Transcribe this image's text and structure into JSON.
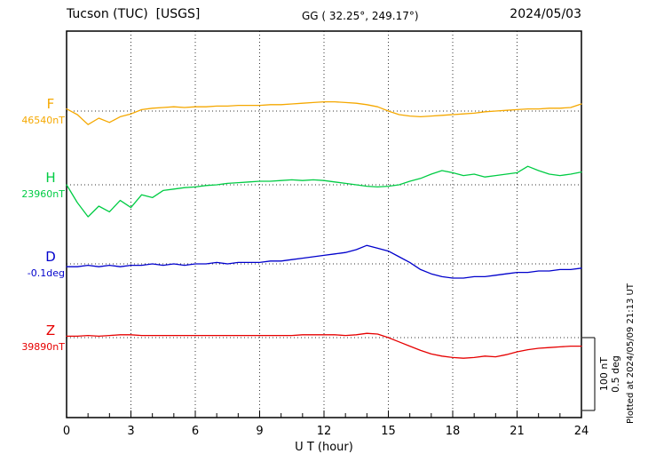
{
  "header": {
    "station": "Tucson (TUC)  [USGS]",
    "gg": "GG ( 32.25°, 249.17°)",
    "date": "2024/05/03"
  },
  "footer": {
    "xlabel": "U T (hour)"
  },
  "side": {
    "plotted": "Plotted at 2024/05/09 21:13 UT",
    "scale_nt": "100 nT",
    "scale_deg": "0.5 deg"
  },
  "chart_data": {
    "type": "line",
    "title": "Tucson (TUC) [USGS] magnetogram 2024/05/03",
    "xlabel": "U T (hour)",
    "x_range": [
      0,
      24
    ],
    "x_ticks": [
      0,
      3,
      6,
      9,
      12,
      15,
      18,
      21,
      24
    ],
    "x_step_hours": 0.5,
    "grid": "dotted vertical at 3h intervals, dotted horizontal baselines per trace",
    "scale": {
      "nT_per_div": 100,
      "deg_per_div": 0.5
    },
    "series": [
      {
        "name": "F",
        "base_label": "46540nT",
        "baseline_value": 46540,
        "unit": "nT",
        "color": "#f5a800",
        "offsets": [
          3,
          -5,
          -19,
          -10,
          -16,
          -8,
          -4,
          2,
          4,
          5,
          6,
          5,
          6,
          6,
          7,
          7,
          8,
          8,
          8,
          9,
          9,
          10,
          11,
          12,
          13,
          13,
          12,
          11,
          9,
          6,
          0,
          -5,
          -7,
          -8,
          -7,
          -6,
          -5,
          -4,
          -3,
          -1,
          0,
          1,
          2,
          3,
          3,
          4,
          4,
          5,
          10
        ]
      },
      {
        "name": "H",
        "base_label": "23960nT",
        "baseline_value": 23960,
        "unit": "nT",
        "color": "#00cc44",
        "offsets": [
          0,
          -25,
          -45,
          -30,
          -38,
          -22,
          -32,
          -14,
          -18,
          -8,
          -6,
          -4,
          -3,
          -1,
          0,
          2,
          3,
          4,
          5,
          5,
          6,
          7,
          6,
          7,
          6,
          4,
          2,
          0,
          -2,
          -3,
          -2,
          0,
          5,
          9,
          15,
          20,
          17,
          13,
          15,
          11,
          13,
          15,
          17,
          26,
          20,
          15,
          13,
          15,
          18
        ]
      },
      {
        "name": "D",
        "base_label": "-0.1deg",
        "baseline_value": -0.1,
        "unit": "deg",
        "color": "#0000cc",
        "offsets": [
          -0.02,
          -0.02,
          -0.01,
          -0.02,
          -0.01,
          -0.02,
          -0.01,
          -0.01,
          0,
          -0.01,
          0,
          -0.01,
          0,
          0,
          0.01,
          0,
          0.01,
          0.01,
          0.01,
          0.02,
          0.02,
          0.03,
          0.04,
          0.05,
          0.06,
          0.07,
          0.08,
          0.1,
          0.13,
          0.11,
          0.09,
          0.05,
          0.01,
          -0.04,
          -0.07,
          -0.09,
          -0.1,
          -0.1,
          -0.09,
          -0.09,
          -0.08,
          -0.07,
          -0.06,
          -0.06,
          -0.05,
          -0.05,
          -0.04,
          -0.04,
          -0.03
        ]
      },
      {
        "name": "Z",
        "base_label": "39890nT",
        "baseline_value": 39890,
        "unit": "nT",
        "color": "#e60000",
        "offsets": [
          2,
          2,
          3,
          2,
          3,
          4,
          4,
          3,
          3,
          3,
          3,
          3,
          3,
          3,
          3,
          3,
          3,
          3,
          3,
          3,
          3,
          3,
          4,
          4,
          4,
          4,
          3,
          4,
          6,
          5,
          0,
          -6,
          -12,
          -18,
          -23,
          -26,
          -28,
          -29,
          -28,
          -26,
          -27,
          -24,
          -20,
          -17,
          -15,
          -14,
          -13,
          -12,
          -12
        ]
      }
    ]
  }
}
